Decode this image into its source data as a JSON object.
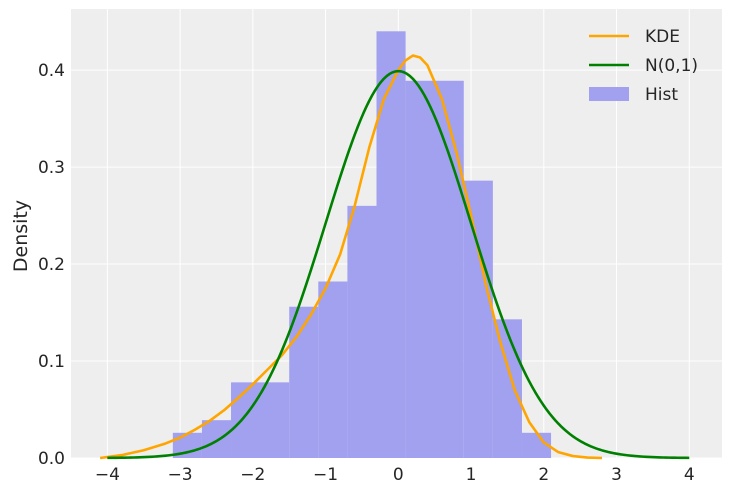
{
  "chart_data": {
    "type": "bar",
    "title": "",
    "xlabel": "",
    "ylabel": "Density",
    "xlim": [
      -4.5,
      4.45
    ],
    "ylim": [
      0,
      0.463
    ],
    "xticks": [
      -4,
      -3,
      -2,
      -1,
      0,
      1,
      2,
      3,
      4
    ],
    "xtick_labels": [
      "−4",
      "−3",
      "−2",
      "−1",
      "0",
      "1",
      "2",
      "3",
      "4"
    ],
    "yticks": [
      0.0,
      0.1,
      0.2,
      0.3,
      0.4
    ],
    "ytick_labels": [
      "0.0",
      "0.1",
      "0.2",
      "0.3",
      "0.4"
    ],
    "grid": true,
    "legend_position": "top-right",
    "colors": {
      "background": "#eeeeee",
      "grid": "#ffffff",
      "hist": "#a1a1f0",
      "kde": "#ffa500",
      "normal": "#008000"
    },
    "histogram": {
      "name": "Hist",
      "bins": [
        {
          "x0": -3.1,
          "x1": -2.7,
          "density": 0.026
        },
        {
          "x0": -2.7,
          "x1": -2.3,
          "density": 0.039
        },
        {
          "x0": -2.3,
          "x1": -1.5,
          "density": 0.078
        },
        {
          "x0": -1.5,
          "x1": -1.1,
          "density": 0.156
        },
        {
          "x0": -1.1,
          "x1": -0.7,
          "density": 0.182
        },
        {
          "x0": -0.7,
          "x1": -0.3,
          "density": 0.26
        },
        {
          "x0": -0.3,
          "x1": 0.1,
          "density": 0.44
        },
        {
          "x0": 0.1,
          "x1": 0.9,
          "density": 0.389
        },
        {
          "x0": 0.9,
          "x1": 1.3,
          "density": 0.286
        },
        {
          "x0": 1.3,
          "x1": 1.7,
          "density": 0.143
        },
        {
          "x0": 1.7,
          "x1": 2.1,
          "density": 0.026
        }
      ]
    },
    "series": [
      {
        "name": "KDE",
        "x": [
          -4.1,
          -3.8,
          -3.5,
          -3.2,
          -3.0,
          -2.8,
          -2.6,
          -2.4,
          -2.2,
          -2.0,
          -1.8,
          -1.6,
          -1.4,
          -1.2,
          -1.0,
          -0.8,
          -0.6,
          -0.4,
          -0.2,
          0.0,
          0.1,
          0.2,
          0.3,
          0.4,
          0.6,
          0.8,
          1.0,
          1.2,
          1.4,
          1.6,
          1.8,
          2.0,
          2.2,
          2.4,
          2.6,
          2.8
        ],
        "y": [
          0.0,
          0.003,
          0.008,
          0.015,
          0.021,
          0.029,
          0.038,
          0.049,
          0.062,
          0.076,
          0.091,
          0.106,
          0.125,
          0.148,
          0.175,
          0.21,
          0.26,
          0.32,
          0.37,
          0.4,
          0.41,
          0.415,
          0.413,
          0.405,
          0.37,
          0.315,
          0.25,
          0.18,
          0.12,
          0.07,
          0.037,
          0.016,
          0.006,
          0.002,
          0.0005,
          0.0
        ]
      },
      {
        "name": "N(0,1)",
        "function": "standard_normal_pdf",
        "domain": [
          -4.0,
          4.0
        ]
      }
    ]
  }
}
